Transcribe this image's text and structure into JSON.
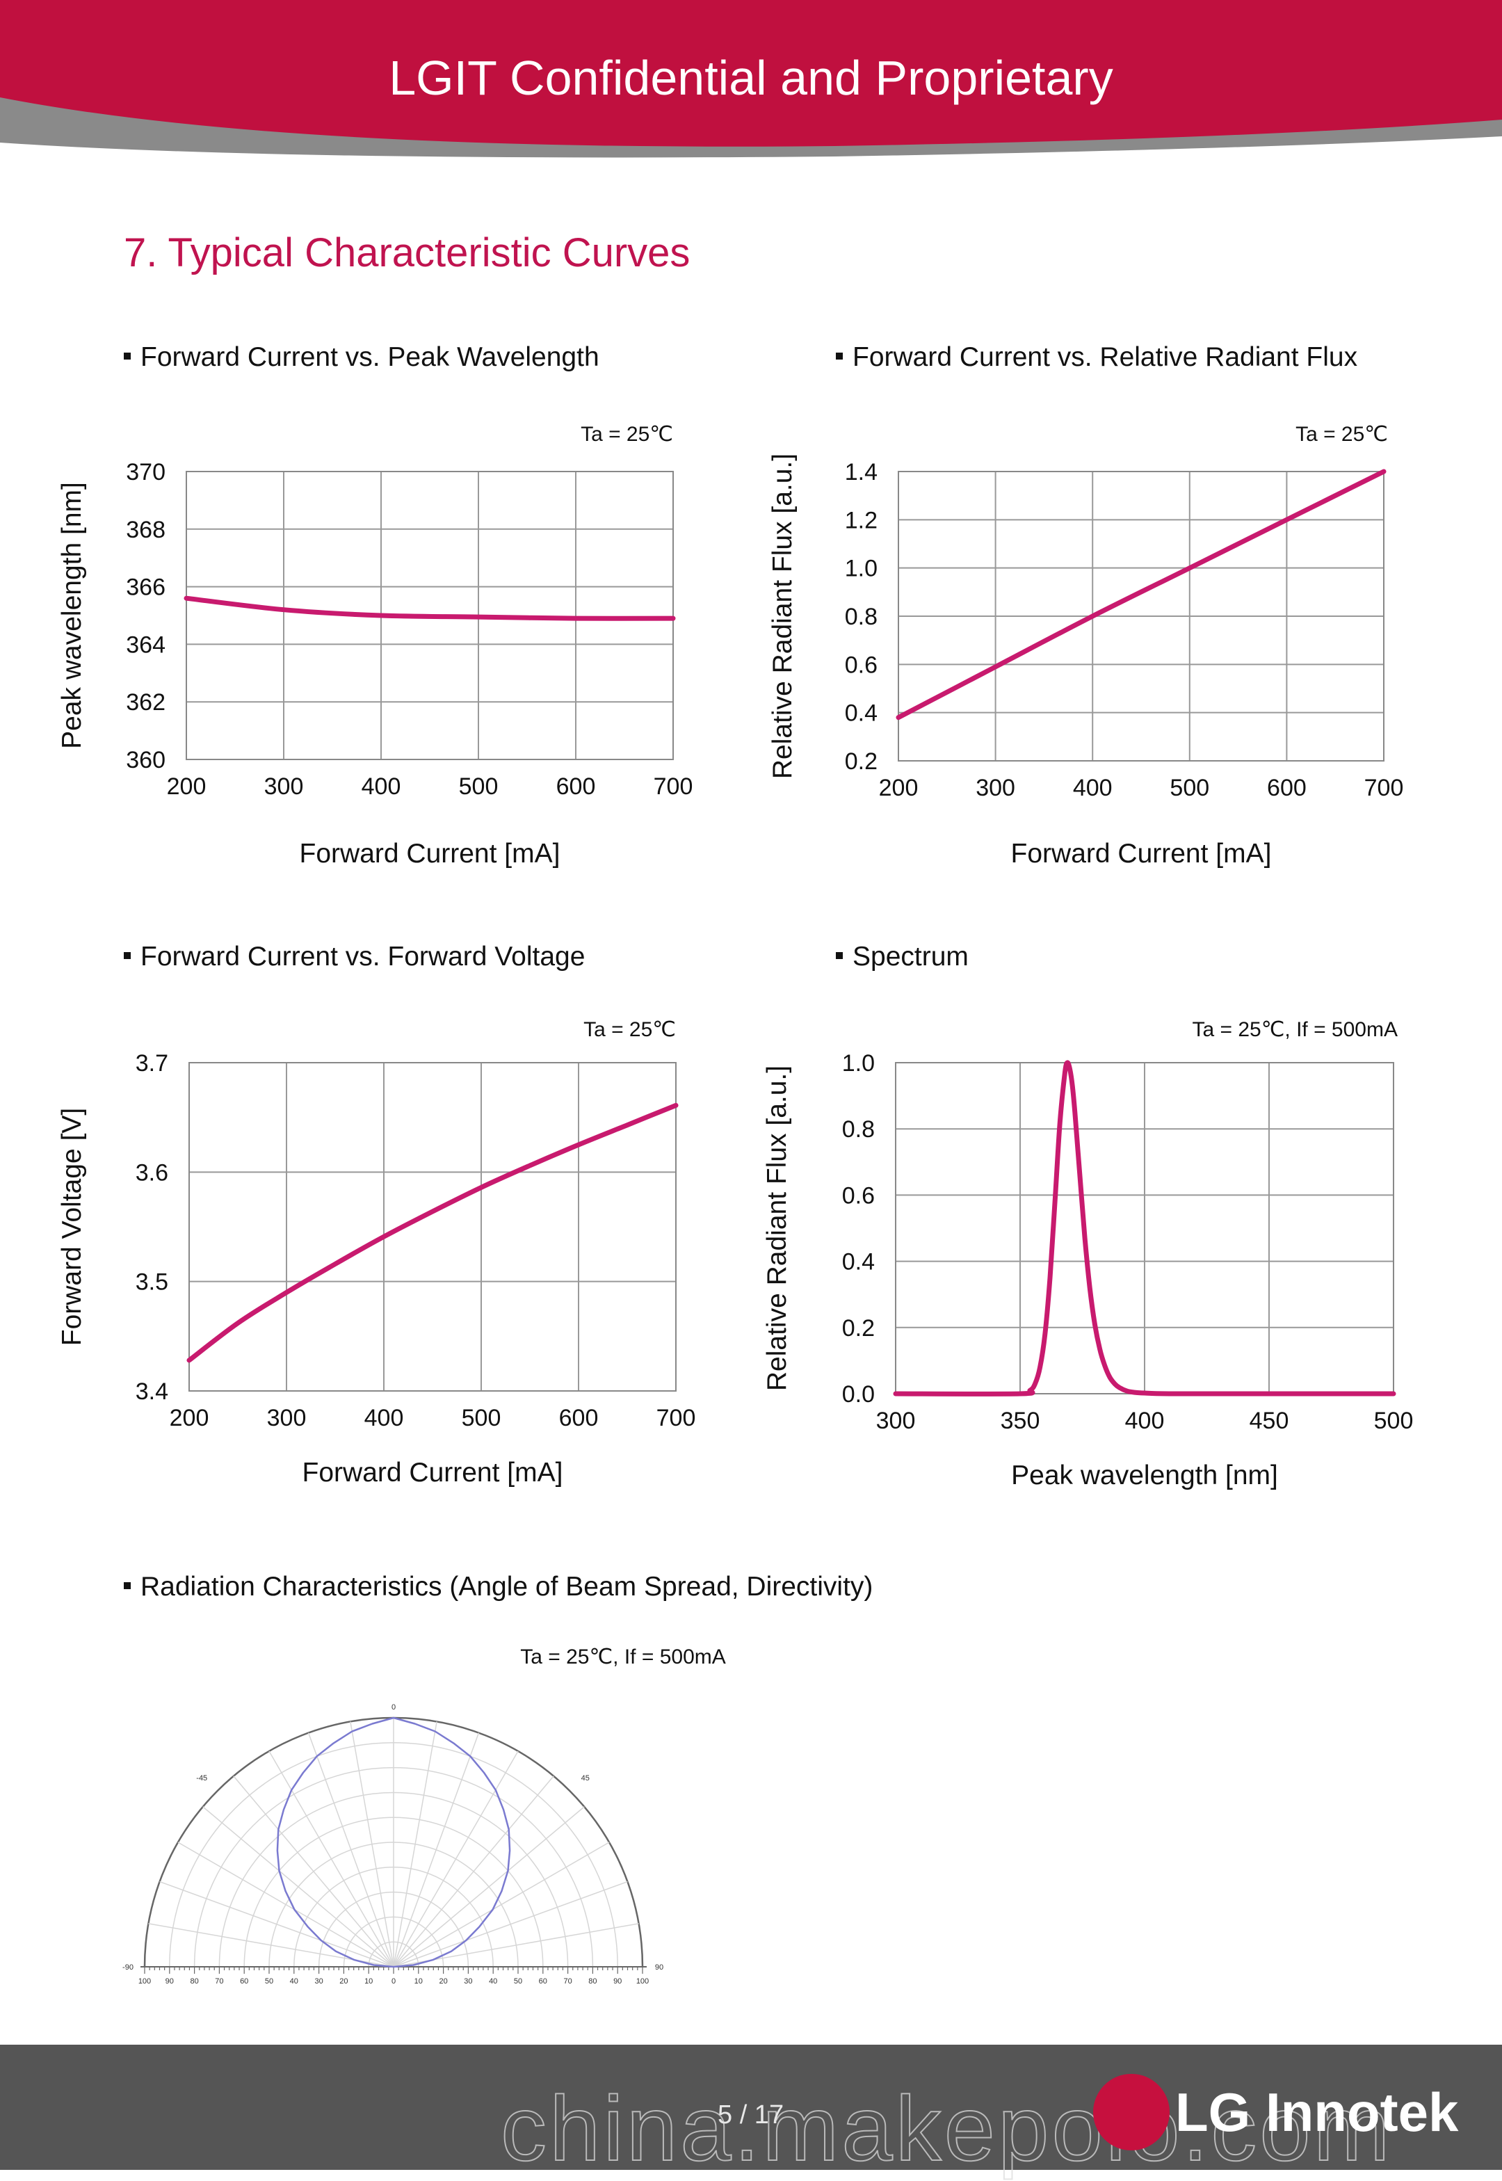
{
  "header": {
    "title": "LGIT Confidential and Proprietary"
  },
  "section": {
    "title": "7. Typical Characteristic Curves"
  },
  "charts": {
    "c1": {
      "subtitle": "Forward Current vs. Peak Wavelength"
    },
    "c2": {
      "subtitle": "Forward Current vs. Relative Radiant Flux"
    },
    "c3": {
      "subtitle": "Forward Current vs. Forward Voltage"
    },
    "c4": {
      "subtitle": "Spectrum"
    },
    "c5": {
      "subtitle": "Radiation Characteristics (Angle of Beam Spread, Directivity)"
    }
  },
  "colors": {
    "accent": "#c0134f",
    "curve": "#c81a6e",
    "grid": "#999999",
    "polar_curve": "#7a7ad0"
  },
  "chart_data": [
    {
      "type": "line",
      "title": "",
      "annotation": "Ta = 25℃",
      "xlabel": "Forward Current [mA]",
      "ylabel": "Peak wavelength [nm]",
      "xlim": [
        200,
        700
      ],
      "ylim": [
        360,
        370
      ],
      "xticks": [
        200,
        300,
        400,
        500,
        600,
        700
      ],
      "yticks": [
        360,
        362,
        364,
        366,
        368,
        370
      ],
      "grid": true,
      "series": [
        {
          "x": [
            200,
            300,
            400,
            500,
            600,
            700
          ],
          "y": [
            365.6,
            365.2,
            365.0,
            364.95,
            364.9,
            364.9
          ]
        }
      ]
    },
    {
      "type": "line",
      "title": "",
      "annotation": "Ta = 25℃",
      "xlabel": "Forward Current [mA]",
      "ylabel": "Relative Radiant Flux [a.u.]",
      "xlim": [
        200,
        700
      ],
      "ylim": [
        0.2,
        1.4
      ],
      "xticks": [
        200,
        300,
        400,
        500,
        600,
        700
      ],
      "yticks": [
        "0.2",
        "0.4",
        "0.6",
        "0.8",
        "1.0",
        "1.2",
        "1.4"
      ],
      "grid": true,
      "series": [
        {
          "x": [
            200,
            300,
            400,
            500,
            600,
            700
          ],
          "y": [
            0.38,
            0.59,
            0.8,
            1.0,
            1.2,
            1.4
          ]
        }
      ]
    },
    {
      "type": "line",
      "title": "",
      "annotation": "Ta = 25℃",
      "xlabel": "Forward Current [mA]",
      "ylabel": "Forward Voltage [V]",
      "xlim": [
        200,
        700
      ],
      "ylim": [
        3.4,
        3.7
      ],
      "xticks": [
        200,
        300,
        400,
        500,
        600,
        700
      ],
      "yticks": [
        "3.4",
        "3.5",
        "3.6",
        "3.7"
      ],
      "grid": true,
      "series": [
        {
          "x": [
            200,
            250,
            300,
            350,
            400,
            450,
            500,
            550,
            600,
            650,
            700
          ],
          "y": [
            3.428,
            3.462,
            3.49,
            3.516,
            3.541,
            3.564,
            3.586,
            3.606,
            3.625,
            3.643,
            3.661
          ]
        }
      ]
    },
    {
      "type": "line",
      "title": "",
      "annotation": "Ta = 25℃,  If = 500mA",
      "xlabel": "Peak wavelength [nm]",
      "ylabel": "Relative Radiant Flux [a.u.]",
      "xlim": [
        300,
        500
      ],
      "ylim": [
        0.0,
        1.0
      ],
      "xticks": [
        300,
        350,
        400,
        450,
        500
      ],
      "yticks": [
        "0.0",
        "0.2",
        "0.4",
        "0.6",
        "0.8",
        "1.0"
      ],
      "grid": true,
      "series": [
        {
          "x": [
            300,
            350,
            354,
            356,
            358,
            360,
            362,
            364,
            366,
            368,
            369,
            370,
            371,
            372,
            374,
            376,
            378,
            380,
            382,
            384,
            386,
            388,
            390,
            393,
            396,
            400,
            410,
            450,
            500
          ],
          "y": [
            0.0,
            0.0,
            0.01,
            0.03,
            0.08,
            0.18,
            0.35,
            0.58,
            0.82,
            0.97,
            1.0,
            0.98,
            0.93,
            0.85,
            0.66,
            0.47,
            0.32,
            0.21,
            0.135,
            0.085,
            0.05,
            0.03,
            0.018,
            0.008,
            0.004,
            0.002,
            0.0,
            0.0,
            0.0
          ]
        }
      ]
    },
    {
      "type": "polar",
      "title": "",
      "annotation": "Ta = 25℃,  If = 500mA",
      "angle_labels": [
        "0",
        "-45",
        "45",
        "-90",
        "90"
      ],
      "radial_ticks": [
        "100",
        "90",
        "80",
        "70",
        "60",
        "50",
        "40",
        "30",
        "20",
        "10",
        "0",
        "10",
        "20",
        "30",
        "40",
        "50",
        "60",
        "70",
        "80",
        "90",
        "100"
      ],
      "series": [
        {
          "angle_deg": [
            -90,
            -85,
            -80,
            -75,
            -70,
            -65,
            -60,
            -55,
            -50,
            -45,
            -40,
            -35,
            -30,
            -25,
            -20,
            -15,
            -10,
            -5,
            0,
            5,
            10,
            15,
            20,
            25,
            30,
            35,
            40,
            45,
            50,
            55,
            60,
            65,
            70,
            75,
            80,
            85,
            90
          ],
          "intensity": [
            0,
            8,
            16,
            24,
            31,
            38,
            46,
            53,
            60,
            66,
            72,
            77,
            82,
            86,
            90,
            93,
            96,
            98,
            100,
            98,
            96,
            93,
            90,
            86,
            82,
            77,
            72,
            66,
            60,
            53,
            46,
            38,
            31,
            24,
            16,
            8,
            0
          ]
        }
      ]
    }
  ]
}
